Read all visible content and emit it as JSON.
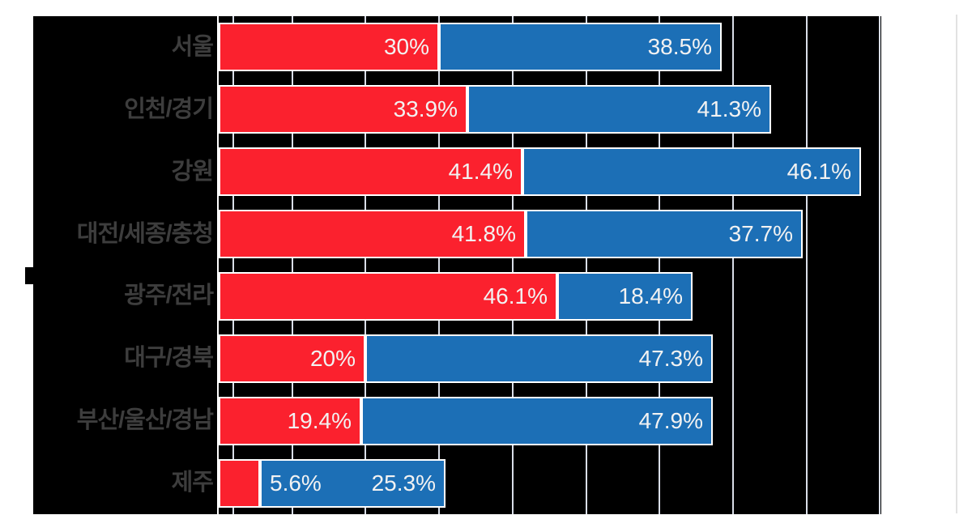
{
  "page": {
    "background": "#ffffff"
  },
  "chart_data": {
    "type": "bar",
    "orientation": "horizontal",
    "stacked": true,
    "categories": [
      "서울",
      "인천/경기",
      "강원",
      "대전/세종/충청",
      "광주/전라",
      "대구/경북",
      "부산/울산/경남",
      "제주"
    ],
    "series": [
      {
        "key": "red",
        "color": "#fb212e",
        "values": [
          30,
          33.9,
          41.4,
          41.8,
          46.1,
          20,
          19.4,
          5.6
        ],
        "labels": [
          "30%",
          "33.9%",
          "41.4%",
          "41.8%",
          "46.1%",
          "20%",
          "19.4%",
          "5.6%"
        ]
      },
      {
        "key": "blue",
        "color": "#1c6fb6",
        "values": [
          38.5,
          41.3,
          46.1,
          37.7,
          18.4,
          47.3,
          47.9,
          25.3
        ],
        "labels": [
          "38.5%",
          "41.3%",
          "46.1%",
          "37.7%",
          "18.4%",
          "47.3%",
          "47.9%",
          "25.3%"
        ]
      }
    ],
    "xlim": [
      0,
      100
    ],
    "gridlines_percent": [
      10,
      20,
      30,
      40,
      50,
      60,
      70,
      80,
      90
    ],
    "grid_on": true,
    "legend": "none",
    "plot_bg": "#000000",
    "grid_color": "#d9dee8",
    "axis_color": "#ffffff",
    "bar_border_color": "#ffffff",
    "value_label_color": "#f2f2f2",
    "category_label_color": "#3d3d3d"
  }
}
